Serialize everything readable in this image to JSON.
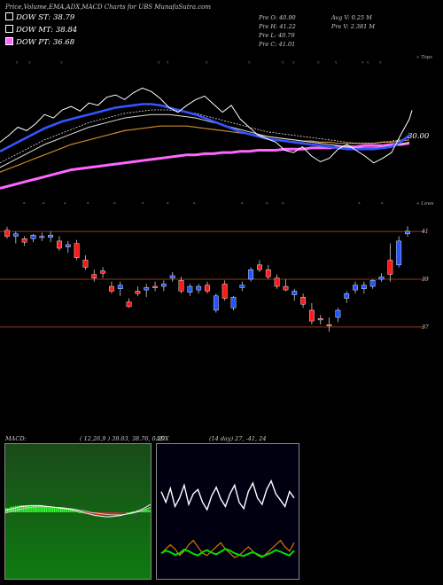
{
  "header": {
    "title": "Price,Volume,EMA,ADX,MACD Charts for UBS MunafaSutra.com"
  },
  "ema_legend": [
    {
      "label": "DOW ST: 38.79",
      "swatch": "#000000"
    },
    {
      "label": "DOW MT: 38.84",
      "swatch": "#000000"
    },
    {
      "label": "DOW PT: 36.68",
      "swatch": "#ff66ff"
    }
  ],
  "ohlc_info": {
    "open": "Pre  O: 40.90",
    "high": "Pre  H: 41.22",
    "low": "Pre  L: 40.79",
    "close": "Pre  C: 41.01",
    "avg_vol": "Avg V: 0.25 M",
    "pre_vol": "Pre  V: 2.381 M"
  },
  "tops_label": "« Tops",
  "lows_label": "« Lows",
  "value_30": "30.00",
  "price_levels": [
    "41",
    "39",
    "37"
  ],
  "macd_panel": {
    "label": "MACD:",
    "params": "( 12,26,9 ) 39.03, 38.76, 0.29"
  },
  "adx_panel": {
    "label": "ADX",
    "params": "(14 day) 27, -41, 24"
  },
  "colors": {
    "up": "#2255ff",
    "down": "#ff1a1a",
    "ema_fast": "#3355ff",
    "ema_pt": "#ff66ff",
    "level": "#8a3a1a"
  },
  "chart_data": {
    "type": "candlestick",
    "levels": [
      41,
      39,
      37
    ],
    "ylim": [
      36.4,
      41.6
    ],
    "candles": [
      {
        "o": 41.05,
        "h": 41.2,
        "l": 40.7,
        "c": 40.8
      },
      {
        "o": 40.8,
        "h": 41.0,
        "l": 40.5,
        "c": 40.9
      },
      {
        "o": 40.7,
        "h": 40.8,
        "l": 40.4,
        "c": 40.55
      },
      {
        "o": 40.7,
        "h": 40.9,
        "l": 40.55,
        "c": 40.85
      },
      {
        "o": 40.75,
        "h": 40.95,
        "l": 40.6,
        "c": 40.8
      },
      {
        "o": 40.75,
        "h": 41.0,
        "l": 40.55,
        "c": 40.85
      },
      {
        "o": 40.6,
        "h": 40.8,
        "l": 40.2,
        "c": 40.3
      },
      {
        "o": 40.35,
        "h": 40.6,
        "l": 40.1,
        "c": 40.45
      },
      {
        "o": 40.5,
        "h": 40.65,
        "l": 39.8,
        "c": 39.9
      },
      {
        "o": 39.8,
        "h": 40.0,
        "l": 39.4,
        "c": 39.5
      },
      {
        "o": 39.2,
        "h": 39.4,
        "l": 38.9,
        "c": 39.05
      },
      {
        "o": 39.35,
        "h": 39.5,
        "l": 39.05,
        "c": 39.25
      },
      {
        "o": 38.7,
        "h": 38.9,
        "l": 38.4,
        "c": 38.5
      },
      {
        "o": 38.6,
        "h": 38.9,
        "l": 38.3,
        "c": 38.75
      },
      {
        "o": 38.05,
        "h": 38.2,
        "l": 37.8,
        "c": 37.85
      },
      {
        "o": 38.5,
        "h": 38.7,
        "l": 38.3,
        "c": 38.4
      },
      {
        "o": 38.55,
        "h": 38.8,
        "l": 38.25,
        "c": 38.65
      },
      {
        "o": 38.7,
        "h": 38.9,
        "l": 38.5,
        "c": 38.65
      },
      {
        "o": 38.7,
        "h": 38.95,
        "l": 38.5,
        "c": 38.8
      },
      {
        "o": 39.05,
        "h": 39.3,
        "l": 38.9,
        "c": 39.15
      },
      {
        "o": 38.95,
        "h": 39.1,
        "l": 38.4,
        "c": 38.5
      },
      {
        "o": 38.45,
        "h": 38.8,
        "l": 38.3,
        "c": 38.7
      },
      {
        "o": 38.55,
        "h": 38.8,
        "l": 38.4,
        "c": 38.7
      },
      {
        "o": 38.75,
        "h": 38.9,
        "l": 38.4,
        "c": 38.5
      },
      {
        "o": 37.7,
        "h": 38.4,
        "l": 37.6,
        "c": 38.3
      },
      {
        "o": 38.8,
        "h": 38.95,
        "l": 38.1,
        "c": 38.2
      },
      {
        "o": 37.8,
        "h": 38.3,
        "l": 37.7,
        "c": 38.25
      },
      {
        "o": 38.65,
        "h": 38.9,
        "l": 38.5,
        "c": 38.75
      },
      {
        "o": 39.0,
        "h": 39.5,
        "l": 38.9,
        "c": 39.4
      },
      {
        "o": 39.6,
        "h": 39.8,
        "l": 39.3,
        "c": 39.4
      },
      {
        "o": 39.4,
        "h": 39.6,
        "l": 39.0,
        "c": 39.1
      },
      {
        "o": 39.05,
        "h": 39.2,
        "l": 38.6,
        "c": 38.7
      },
      {
        "o": 38.7,
        "h": 39.0,
        "l": 38.5,
        "c": 38.55
      },
      {
        "o": 38.35,
        "h": 38.6,
        "l": 38.1,
        "c": 38.5
      },
      {
        "o": 38.25,
        "h": 38.4,
        "l": 37.8,
        "c": 37.95
      },
      {
        "o": 37.7,
        "h": 38.0,
        "l": 37.1,
        "c": 37.25
      },
      {
        "o": 37.35,
        "h": 37.5,
        "l": 37.1,
        "c": 37.3
      },
      {
        "o": 37.1,
        "h": 37.4,
        "l": 36.8,
        "c": 37.05
      },
      {
        "o": 37.4,
        "h": 37.8,
        "l": 37.2,
        "c": 37.7
      },
      {
        "o": 38.2,
        "h": 38.5,
        "l": 38.0,
        "c": 38.4
      },
      {
        "o": 38.55,
        "h": 38.9,
        "l": 38.4,
        "c": 38.75
      },
      {
        "o": 38.6,
        "h": 38.9,
        "l": 38.4,
        "c": 38.75
      },
      {
        "o": 38.7,
        "h": 39.0,
        "l": 38.6,
        "c": 38.95
      },
      {
        "o": 39.0,
        "h": 39.25,
        "l": 38.9,
        "c": 39.1
      },
      {
        "o": 39.8,
        "h": 40.5,
        "l": 38.9,
        "c": 39.2
      },
      {
        "o": 39.6,
        "h": 40.8,
        "l": 39.5,
        "c": 40.6
      },
      {
        "o": 40.9,
        "h": 41.22,
        "l": 40.79,
        "c": 41.01
      }
    ],
    "price_line": [
      0.42,
      0.48,
      0.55,
      0.52,
      0.58,
      0.66,
      0.63,
      0.7,
      0.73,
      0.69,
      0.76,
      0.74,
      0.81,
      0.83,
      0.79,
      0.85,
      0.89,
      0.86,
      0.8,
      0.72,
      0.68,
      0.74,
      0.79,
      0.82,
      0.75,
      0.68,
      0.74,
      0.62,
      0.55,
      0.48,
      0.45,
      0.42,
      0.35,
      0.33,
      0.38,
      0.3,
      0.25,
      0.28,
      0.36,
      0.4,
      0.35,
      0.3,
      0.24,
      0.28,
      0.33,
      0.48,
      0.62
    ],
    "ema_fast": [
      0.34,
      0.38,
      0.42,
      0.46,
      0.5,
      0.54,
      0.57,
      0.6,
      0.62,
      0.64,
      0.66,
      0.68,
      0.7,
      0.72,
      0.73,
      0.74,
      0.75,
      0.75,
      0.74,
      0.72,
      0.7,
      0.68,
      0.66,
      0.63,
      0.6,
      0.57,
      0.54,
      0.51,
      0.49,
      0.47,
      0.45,
      0.44,
      0.43,
      0.42,
      0.41,
      0.4,
      0.39,
      0.38,
      0.37,
      0.36,
      0.36,
      0.36,
      0.36,
      0.37,
      0.38,
      0.42,
      0.48
    ],
    "ema_mt": [
      0.2,
      0.24,
      0.28,
      0.32,
      0.36,
      0.4,
      0.43,
      0.46,
      0.49,
      0.52,
      0.55,
      0.57,
      0.59,
      0.61,
      0.63,
      0.64,
      0.65,
      0.66,
      0.66,
      0.66,
      0.65,
      0.64,
      0.63,
      0.61,
      0.59,
      0.57,
      0.55,
      0.53,
      0.51,
      0.49,
      0.47,
      0.46,
      0.45,
      0.44,
      0.43,
      0.42,
      0.41,
      0.4,
      0.39,
      0.38,
      0.37,
      0.37,
      0.37,
      0.38,
      0.39,
      0.4,
      0.42
    ],
    "ema_slow": [
      0.16,
      0.19,
      0.22,
      0.25,
      0.28,
      0.31,
      0.34,
      0.37,
      0.4,
      0.42,
      0.44,
      0.46,
      0.48,
      0.5,
      0.52,
      0.53,
      0.54,
      0.55,
      0.56,
      0.56,
      0.56,
      0.56,
      0.55,
      0.54,
      0.53,
      0.52,
      0.51,
      0.5,
      0.49,
      0.48,
      0.47,
      0.46,
      0.45,
      0.44,
      0.43,
      0.43,
      0.42,
      0.42,
      0.41,
      0.41,
      0.41,
      0.41,
      0.41,
      0.42,
      0.42,
      0.43,
      0.44
    ],
    "ema_pt": [
      0.02,
      0.04,
      0.06,
      0.08,
      0.1,
      0.12,
      0.14,
      0.16,
      0.18,
      0.19,
      0.2,
      0.21,
      0.22,
      0.23,
      0.24,
      0.25,
      0.26,
      0.27,
      0.28,
      0.29,
      0.3,
      0.31,
      0.31,
      0.32,
      0.32,
      0.33,
      0.33,
      0.34,
      0.34,
      0.35,
      0.35,
      0.35,
      0.36,
      0.36,
      0.36,
      0.37,
      0.37,
      0.37,
      0.38,
      0.38,
      0.38,
      0.39,
      0.39,
      0.39,
      0.4,
      0.4,
      0.41
    ],
    "macd": {
      "params": [
        12,
        26,
        9
      ],
      "values": [
        39.03,
        38.76,
        0.29
      ],
      "line": [
        0.5,
        0.52,
        0.54,
        0.56,
        0.57,
        0.58,
        0.58,
        0.58,
        0.57,
        0.56,
        0.55,
        0.54,
        0.53,
        0.52,
        0.5,
        0.48,
        0.46,
        0.44,
        0.42,
        0.41,
        0.4,
        0.4,
        0.41,
        0.42,
        0.44,
        0.46,
        0.48,
        0.51,
        0.55,
        0.6
      ],
      "signal": [
        0.46,
        0.48,
        0.5,
        0.52,
        0.54,
        0.55,
        0.56,
        0.56,
        0.56,
        0.56,
        0.55,
        0.55,
        0.54,
        0.53,
        0.52,
        0.5,
        0.49,
        0.47,
        0.46,
        0.45,
        0.44,
        0.43,
        0.43,
        0.43,
        0.44,
        0.45,
        0.47,
        0.49,
        0.52,
        0.55
      ],
      "hist": [
        0.6,
        0.8,
        0.9,
        1.0,
        1.0,
        1.0,
        0.9,
        0.9,
        0.8,
        0.8,
        0.7,
        0.6,
        0.5,
        0.4,
        0.2,
        0.0,
        -0.2,
        -0.3,
        -0.4,
        -0.4,
        -0.4,
        -0.3,
        -0.3,
        -0.2,
        -0.1,
        0.0,
        0.1,
        0.2,
        0.3,
        0.4
      ]
    },
    "adx": {
      "period": 14,
      "values": [
        27,
        -41,
        24
      ],
      "di_plus": [
        0.28,
        0.33,
        0.3,
        0.25,
        0.28,
        0.35,
        0.32,
        0.27,
        0.24,
        0.3,
        0.34,
        0.29,
        0.26,
        0.31,
        0.36,
        0.33,
        0.28,
        0.25,
        0.23,
        0.27,
        0.3,
        0.26,
        0.22,
        0.25,
        0.29,
        0.34,
        0.31,
        0.27,
        0.24,
        0.33
      ],
      "di_minus": [
        0.72,
        0.62,
        0.75,
        0.58,
        0.66,
        0.78,
        0.6,
        0.7,
        0.74,
        0.62,
        0.55,
        0.68,
        0.76,
        0.65,
        0.58,
        0.7,
        0.78,
        0.62,
        0.56,
        0.72,
        0.8,
        0.66,
        0.6,
        0.74,
        0.82,
        0.7,
        0.64,
        0.58,
        0.72,
        0.66
      ],
      "adx": [
        0.14,
        0.18,
        0.22,
        0.18,
        0.12,
        0.16,
        0.22,
        0.26,
        0.2,
        0.14,
        0.12,
        0.16,
        0.2,
        0.24,
        0.18,
        0.14,
        0.1,
        0.12,
        0.16,
        0.2,
        0.16,
        0.12,
        0.1,
        0.14,
        0.18,
        0.22,
        0.26,
        0.2,
        0.16,
        0.24
      ]
    }
  }
}
